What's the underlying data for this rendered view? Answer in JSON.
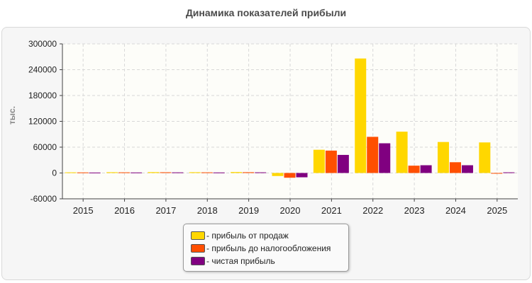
{
  "chart_data": {
    "type": "bar",
    "title": "Динамика показателей прибыли",
    "ylabel": "тыс.",
    "xlabel": "",
    "ylim": [
      -60000,
      300000
    ],
    "yticks": [
      -60000,
      0,
      60000,
      120000,
      180000,
      240000,
      300000
    ],
    "categories": [
      "2015",
      "2016",
      "2017",
      "2018",
      "2019",
      "2020",
      "2021",
      "2022",
      "2023",
      "2024",
      "2025"
    ],
    "grid": true,
    "legend_position": "bottom-center",
    "series": [
      {
        "name": "- прибыль от продаж",
        "color": "#FFD700",
        "values": [
          1500,
          1800,
          2000,
          1800,
          2200,
          -7000,
          54000,
          266000,
          96000,
          72000,
          71000
        ]
      },
      {
        "name": "- прибыль до налогообложения",
        "color": "#FF4F00",
        "values": [
          1300,
          1500,
          1700,
          1500,
          1800,
          -11000,
          52000,
          84000,
          17000,
          25000,
          -1500
        ]
      },
      {
        "name": "- чистая прибыль",
        "color": "#800080",
        "values": [
          1000,
          1200,
          1400,
          1200,
          1500,
          -10000,
          42000,
          69000,
          18000,
          18000,
          1500
        ]
      }
    ]
  }
}
